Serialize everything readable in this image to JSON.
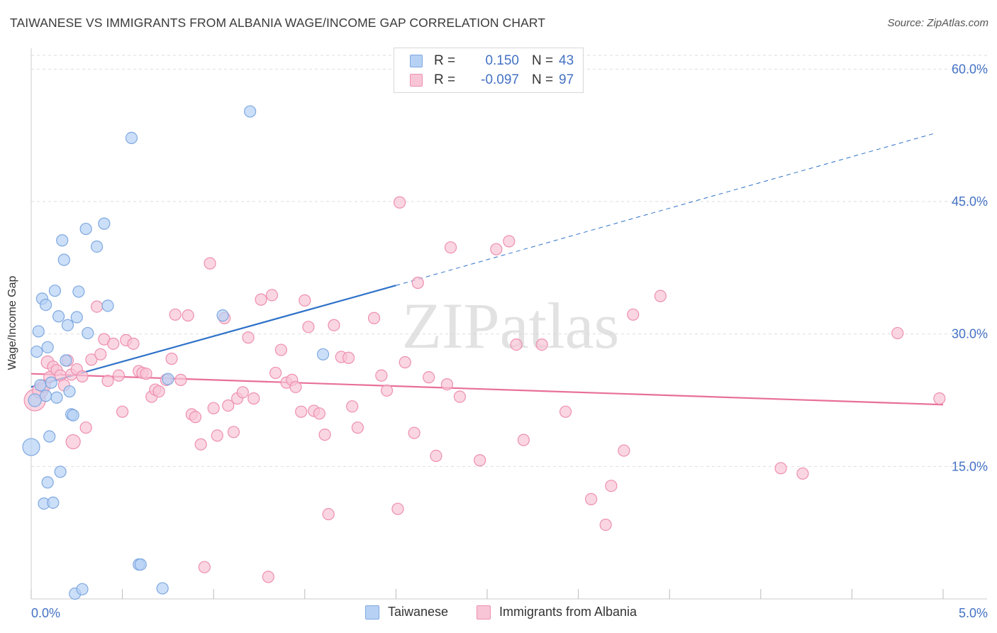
{
  "title": "TAIWANESE VS IMMIGRANTS FROM ALBANIA WAGE/INCOME GAP CORRELATION CHART",
  "source": "Source: ZipAtlas.com",
  "watermark": "ZIPatlas",
  "colors": {
    "blue_fill": "#b7d1f5",
    "blue_stroke": "#7ea8e0",
    "blue_line": "#2f72c8",
    "pink_fill": "#f8c5d6",
    "pink_stroke": "#ee8fb0",
    "pink_line": "#e8709a",
    "tick_label": "#4472c4",
    "grid": "#dedede"
  },
  "legend_top": {
    "rows": [
      {
        "r_label": "R =",
        "r_value": "0.150",
        "n_label": "N =",
        "n_value": "43"
      },
      {
        "r_label": "R =",
        "r_value": "-0.097",
        "n_label": "N =",
        "n_value": "97"
      }
    ]
  },
  "legend_bottom": [
    "Taiwanese",
    "Immigrants from Albania"
  ],
  "chart_data": {
    "type": "scatter",
    "title": "TAIWANESE VS IMMIGRANTS FROM ALBANIA WAGE/INCOME GAP CORRELATION CHART",
    "xlabel": "",
    "ylabel": "Wage/Income Gap",
    "xlim": [
      0,
      5.0
    ],
    "ylim": [
      0,
      63
    ],
    "x_ticks": [
      "0.0%",
      "5.0%"
    ],
    "y_ticks": [
      {
        "value": 15,
        "label": "15.0%"
      },
      {
        "value": 30,
        "label": "30.0%"
      },
      {
        "value": 45,
        "label": "45.0%"
      },
      {
        "value": 60,
        "label": "60.0%"
      }
    ],
    "series": [
      {
        "name": "Taiwanese",
        "r": 0.15,
        "n": 43,
        "trend": {
          "x0": 0.0,
          "y0": 24.0,
          "x1": 2.0,
          "y1": 35.5,
          "dash_to_x": 4.95,
          "dash_to_y": 52.7
        },
        "points": [
          [
            0.0,
            17.2,
            24
          ],
          [
            0.02,
            22.5,
            18
          ],
          [
            0.03,
            28.0,
            16
          ],
          [
            0.04,
            30.3,
            16
          ],
          [
            0.05,
            24.2,
            16
          ],
          [
            0.06,
            34.0,
            16
          ],
          [
            0.07,
            10.8,
            16
          ],
          [
            0.08,
            23.0,
            16
          ],
          [
            0.08,
            33.3,
            16
          ],
          [
            0.09,
            13.2,
            16
          ],
          [
            0.09,
            28.5,
            16
          ],
          [
            0.1,
            18.4,
            16
          ],
          [
            0.11,
            24.5,
            16
          ],
          [
            0.12,
            10.9,
            16
          ],
          [
            0.13,
            34.9,
            16
          ],
          [
            0.14,
            22.8,
            16
          ],
          [
            0.15,
            32.0,
            16
          ],
          [
            0.16,
            14.4,
            16
          ],
          [
            0.17,
            40.6,
            16
          ],
          [
            0.18,
            38.4,
            16
          ],
          [
            0.19,
            27.0,
            16
          ],
          [
            0.2,
            31.0,
            16
          ],
          [
            0.21,
            23.5,
            16
          ],
          [
            0.22,
            20.9,
            16
          ],
          [
            0.23,
            20.8,
            16
          ],
          [
            0.24,
            0.6,
            16
          ],
          [
            0.25,
            31.9,
            16
          ],
          [
            0.26,
            34.8,
            16
          ],
          [
            0.28,
            1.1,
            16
          ],
          [
            0.3,
            41.9,
            16
          ],
          [
            0.31,
            30.1,
            16
          ],
          [
            0.36,
            39.9,
            16
          ],
          [
            0.4,
            42.5,
            16
          ],
          [
            0.42,
            33.2,
            16
          ],
          [
            0.55,
            52.2,
            16
          ],
          [
            0.59,
            3.9,
            16
          ],
          [
            0.6,
            3.9,
            16
          ],
          [
            0.72,
            1.2,
            16
          ],
          [
            0.75,
            24.9,
            16
          ],
          [
            1.05,
            32.1,
            16
          ],
          [
            1.2,
            55.2,
            16
          ],
          [
            1.6,
            27.7,
            16
          ],
          [
            0.0,
            0.0,
            0
          ]
        ]
      },
      {
        "name": "Immigrants from Albania",
        "r": -0.097,
        "n": 97,
        "trend": {
          "x0": 0.0,
          "y0": 25.5,
          "x1": 5.0,
          "y1": 22.0
        },
        "points": [
          [
            0.02,
            22.5,
            30
          ],
          [
            0.05,
            23.6,
            22
          ],
          [
            0.07,
            24.1,
            18
          ],
          [
            0.09,
            26.8,
            18
          ],
          [
            0.1,
            25.1,
            16
          ],
          [
            0.12,
            26.3,
            16
          ],
          [
            0.14,
            25.9,
            16
          ],
          [
            0.16,
            25.3,
            16
          ],
          [
            0.18,
            24.2,
            16
          ],
          [
            0.2,
            27.0,
            16
          ],
          [
            0.22,
            25.4,
            16
          ],
          [
            0.23,
            17.8,
            20
          ],
          [
            0.25,
            26.0,
            16
          ],
          [
            0.28,
            25.2,
            16
          ],
          [
            0.3,
            19.4,
            16
          ],
          [
            0.33,
            27.1,
            16
          ],
          [
            0.36,
            33.1,
            16
          ],
          [
            0.38,
            27.7,
            16
          ],
          [
            0.4,
            29.4,
            16
          ],
          [
            0.42,
            24.7,
            16
          ],
          [
            0.45,
            28.9,
            16
          ],
          [
            0.48,
            25.3,
            16
          ],
          [
            0.5,
            21.2,
            16
          ],
          [
            0.52,
            29.3,
            16
          ],
          [
            0.56,
            28.9,
            16
          ],
          [
            0.59,
            25.8,
            16
          ],
          [
            0.61,
            25.6,
            16
          ],
          [
            0.63,
            25.5,
            16
          ],
          [
            0.66,
            22.9,
            16
          ],
          [
            0.68,
            23.7,
            16
          ],
          [
            0.7,
            23.5,
            16
          ],
          [
            0.74,
            24.8,
            16
          ],
          [
            0.77,
            27.2,
            16
          ],
          [
            0.79,
            32.2,
            16
          ],
          [
            0.82,
            24.8,
            16
          ],
          [
            0.86,
            32.1,
            16
          ],
          [
            0.88,
            20.9,
            16
          ],
          [
            0.9,
            20.6,
            16
          ],
          [
            0.93,
            17.5,
            16
          ],
          [
            0.95,
            3.6,
            16
          ],
          [
            0.98,
            38.0,
            16
          ],
          [
            1.0,
            21.6,
            16
          ],
          [
            1.02,
            18.5,
            16
          ],
          [
            1.06,
            31.8,
            16
          ],
          [
            1.08,
            21.9,
            16
          ],
          [
            1.11,
            18.9,
            16
          ],
          [
            1.13,
            22.7,
            16
          ],
          [
            1.16,
            23.4,
            16
          ],
          [
            1.19,
            29.6,
            16
          ],
          [
            1.22,
            22.7,
            16
          ],
          [
            1.26,
            33.9,
            16
          ],
          [
            1.3,
            2.5,
            16
          ],
          [
            1.32,
            34.4,
            16
          ],
          [
            1.34,
            25.6,
            16
          ],
          [
            1.37,
            28.2,
            16
          ],
          [
            1.4,
            24.5,
            16
          ],
          [
            1.43,
            24.8,
            16
          ],
          [
            1.45,
            24.0,
            16
          ],
          [
            1.48,
            21.2,
            16
          ],
          [
            1.5,
            33.8,
            16
          ],
          [
            1.52,
            30.8,
            16
          ],
          [
            1.55,
            21.3,
            16
          ],
          [
            1.58,
            21.0,
            16
          ],
          [
            1.61,
            18.6,
            16
          ],
          [
            1.63,
            9.6,
            16
          ],
          [
            1.66,
            31.0,
            16
          ],
          [
            1.7,
            27.4,
            16
          ],
          [
            1.74,
            27.3,
            16
          ],
          [
            1.76,
            21.8,
            16
          ],
          [
            1.79,
            19.4,
            16
          ],
          [
            1.88,
            31.8,
            16
          ],
          [
            1.92,
            25.3,
            16
          ],
          [
            1.95,
            23.6,
            16
          ],
          [
            2.01,
            10.2,
            16
          ],
          [
            2.05,
            26.8,
            16
          ],
          [
            2.02,
            44.9,
            16
          ],
          [
            2.1,
            18.8,
            16
          ],
          [
            2.12,
            35.8,
            16
          ],
          [
            2.18,
            25.1,
            16
          ],
          [
            2.22,
            16.2,
            16
          ],
          [
            2.28,
            24.3,
            16
          ],
          [
            2.3,
            39.8,
            16
          ],
          [
            2.35,
            22.9,
            16
          ],
          [
            2.46,
            15.7,
            16
          ],
          [
            2.55,
            39.6,
            16
          ],
          [
            2.62,
            40.5,
            16
          ],
          [
            2.66,
            28.8,
            16
          ],
          [
            2.7,
            18.0,
            16
          ],
          [
            2.8,
            28.8,
            16
          ],
          [
            2.93,
            21.2,
            16
          ],
          [
            3.07,
            11.3,
            16
          ],
          [
            3.15,
            8.4,
            16
          ],
          [
            3.18,
            12.8,
            16
          ],
          [
            3.25,
            16.8,
            16
          ],
          [
            3.3,
            32.2,
            16
          ],
          [
            3.45,
            34.3,
            16
          ],
          [
            4.11,
            14.8,
            16
          ]
        ],
        "extra_points": [
          [
            4.23,
            14.2,
            16
          ],
          [
            4.75,
            30.1,
            16
          ],
          [
            4.98,
            22.7,
            16
          ]
        ]
      }
    ]
  }
}
